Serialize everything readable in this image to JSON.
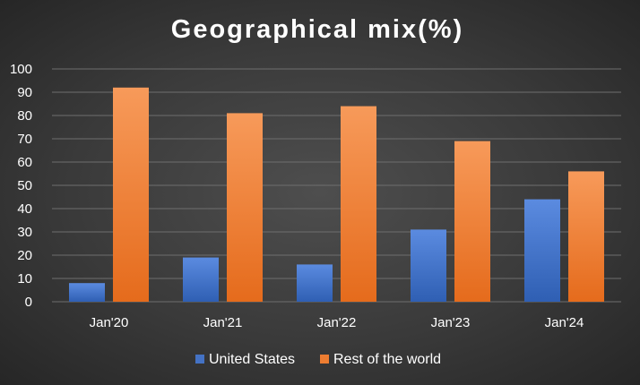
{
  "chart_data": {
    "type": "bar",
    "title": "Geographical mix(%)",
    "categories": [
      "Jan'20",
      "Jan'21",
      "Jan'22",
      "Jan'23",
      "Jan'24"
    ],
    "series": [
      {
        "name": "United States",
        "values": [
          8,
          19,
          16,
          31,
          44
        ],
        "color": "#4472c4"
      },
      {
        "name": "Rest of the world",
        "values": [
          92,
          81,
          84,
          69,
          56
        ],
        "color": "#ed7d31"
      }
    ],
    "ylim": [
      0,
      100
    ],
    "yticks": [
      0,
      10,
      20,
      30,
      40,
      50,
      60,
      70,
      80,
      90,
      100
    ],
    "grid": true,
    "legend_position": "bottom"
  }
}
